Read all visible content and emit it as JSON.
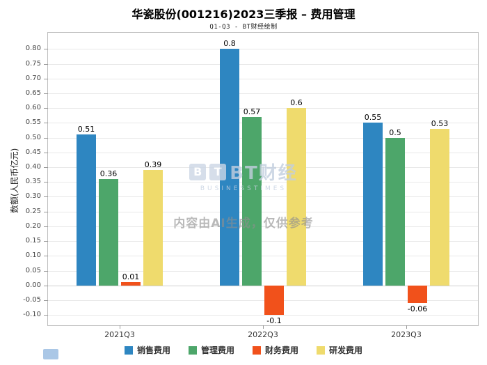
{
  "header": {
    "title": "华瓷股份(001216)2023三季报 – 费用管理",
    "subtitle": "Q1-Q3 - BT财经绘制"
  },
  "axes": {
    "ylabel": "数额(人民币亿元)"
  },
  "watermark": {
    "tile_b": "B",
    "tile_t": "T",
    "logo_text": "BT财经",
    "logo_sub": "BUSINESSTIMES",
    "notice": "内容由AI生成，仅供参考"
  },
  "chart_data": {
    "type": "bar",
    "title": "华瓷股份(001216)2023三季报 – 费用管理",
    "subtitle": "Q1-Q3 - BT财经绘制",
    "categories": [
      "2021Q3",
      "2022Q3",
      "2023Q3"
    ],
    "series": [
      {
        "name": "销售费用",
        "color": "#2E86C1",
        "values": [
          0.51,
          0.8,
          0.55
        ]
      },
      {
        "name": "管理费用",
        "color": "#4DA66A",
        "values": [
          0.36,
          0.57,
          0.5
        ]
      },
      {
        "name": "财务费用",
        "color": "#F1511B",
        "values": [
          0.01,
          -0.1,
          -0.06
        ]
      },
      {
        "name": "研发费用",
        "color": "#EFDB6D",
        "values": [
          0.39,
          0.6,
          0.53
        ]
      }
    ],
    "xlabel": "",
    "ylabel": "数额(人民币亿元)",
    "ylim": [
      -0.135,
      0.855
    ],
    "yticks": [
      -0.1,
      -0.05,
      0.0,
      0.05,
      0.1,
      0.15,
      0.2,
      0.25,
      0.3,
      0.35,
      0.4,
      0.45,
      0.5,
      0.55,
      0.6,
      0.65,
      0.7,
      0.75,
      0.8
    ],
    "grid": true,
    "legend_position": "bottom"
  }
}
